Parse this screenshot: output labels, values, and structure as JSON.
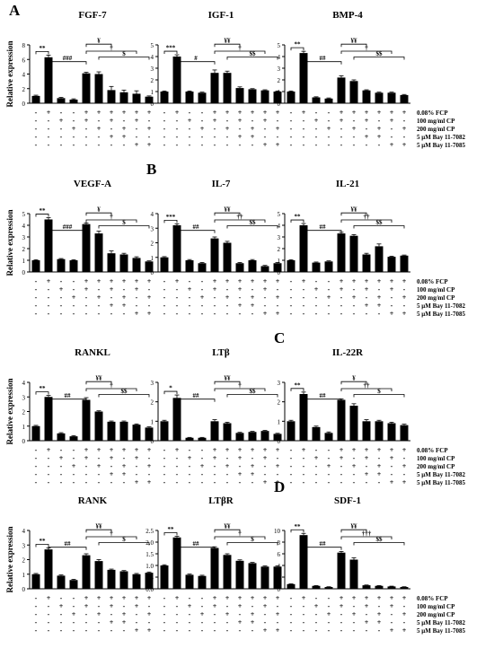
{
  "chart_data": {
    "type": "bar",
    "ylabel": "Relative expression",
    "treatment_rows": [
      "0.08% FCP",
      "100 mg/ml CP",
      "200 mg/ml CP",
      "5 μM Bay 11-7082",
      "5 μM Bay 11-7085"
    ],
    "treatment_matrix": [
      [
        "-",
        "+",
        "-",
        "-",
        "+",
        "+",
        "+",
        "+",
        "+",
        "+"
      ],
      [
        "-",
        "-",
        "+",
        "-",
        "+",
        "-",
        "+",
        "-",
        "+",
        "-"
      ],
      [
        "-",
        "-",
        "-",
        "+",
        "-",
        "+",
        "-",
        "+",
        "-",
        "+"
      ],
      [
        "-",
        "-",
        "-",
        "-",
        "-",
        "-",
        "+",
        "+",
        "-",
        "-"
      ],
      [
        "-",
        "-",
        "-",
        "-",
        "-",
        "-",
        "-",
        "-",
        "+",
        "+"
      ]
    ],
    "panel_letters": [
      "A",
      "B",
      "C",
      "D"
    ],
    "panels": [
      {
        "title": "FGF-7",
        "letter": "A",
        "ylim": [
          0,
          8
        ],
        "ticks": [
          0,
          2,
          4,
          6,
          8
        ],
        "values": [
          1.0,
          6.3,
          0.7,
          0.5,
          4.1,
          4.0,
          1.8,
          1.5,
          1.3,
          0.9
        ],
        "errors": [
          0.1,
          0.3,
          0.1,
          0.1,
          0.15,
          0.3,
          0.5,
          0.3,
          0.4,
          0.1
        ],
        "sig": [
          "**",
          "###",
          "¥",
          "†",
          "$"
        ]
      },
      {
        "title": "IGF-1",
        "letter": "",
        "ylim": [
          0,
          5
        ],
        "ticks": [
          0,
          1,
          2,
          3,
          4,
          5
        ],
        "values": [
          1.0,
          4.0,
          1.0,
          0.9,
          2.6,
          2.6,
          1.3,
          1.2,
          1.1,
          1.0
        ],
        "errors": [
          0.05,
          0.15,
          0.05,
          0.05,
          0.25,
          0.15,
          0.1,
          0.05,
          0.05,
          0.05
        ],
        "sig": [
          "***",
          "#",
          "¥¥",
          "†",
          "$$"
        ]
      },
      {
        "title": "BMP-4",
        "letter": "",
        "ylim": [
          0,
          5
        ],
        "ticks": [
          0,
          1,
          2,
          3,
          4,
          5
        ],
        "values": [
          1.0,
          4.3,
          0.5,
          0.4,
          2.2,
          1.9,
          1.1,
          0.9,
          0.9,
          0.7
        ],
        "errors": [
          0.05,
          0.15,
          0.05,
          0.05,
          0.15,
          0.1,
          0.05,
          0.05,
          0.05,
          0.05
        ],
        "sig": [
          "**",
          "##",
          "¥¥",
          "†",
          "$$"
        ]
      },
      {
        "title": "VEGF-A",
        "letter": "",
        "ylim": [
          0,
          5
        ],
        "ticks": [
          0,
          1,
          2,
          3,
          4,
          5
        ],
        "values": [
          1.0,
          4.5,
          1.1,
          1.0,
          4.1,
          3.3,
          1.6,
          1.5,
          1.2,
          0.9
        ],
        "errors": [
          0.05,
          0.15,
          0.05,
          0.05,
          0.1,
          0.2,
          0.2,
          0.1,
          0.1,
          0.05
        ],
        "sig": [
          "**",
          "###",
          "¥",
          "†",
          "$"
        ]
      },
      {
        "title": "IL-7",
        "letter": "B",
        "ylim": [
          0,
          4
        ],
        "ticks": [
          0,
          1,
          2,
          3,
          4
        ],
        "values": [
          1.0,
          3.2,
          0.8,
          0.6,
          2.3,
          2.0,
          0.6,
          0.8,
          0.4,
          0.6
        ],
        "errors": [
          0.05,
          0.1,
          0.05,
          0.05,
          0.1,
          0.1,
          0.05,
          0.05,
          0.05,
          0.05
        ],
        "sig": [
          "***",
          "##",
          "¥¥",
          "††",
          "$$"
        ]
      },
      {
        "title": "IL-21",
        "letter": "",
        "ylim": [
          0,
          5
        ],
        "ticks": [
          0,
          1,
          2,
          3,
          4,
          5
        ],
        "values": [
          1.0,
          4.0,
          0.8,
          0.9,
          3.3,
          3.1,
          1.5,
          2.2,
          1.3,
          1.4
        ],
        "errors": [
          0.05,
          0.15,
          0.05,
          0.05,
          0.1,
          0.1,
          0.1,
          0.2,
          0.05,
          0.05
        ],
        "sig": [
          "**",
          "##",
          "¥¥",
          "††",
          "$$"
        ]
      },
      {
        "title": "RANKL",
        "letter": "",
        "ylim": [
          0,
          4
        ],
        "ticks": [
          0,
          1,
          2,
          3,
          4
        ],
        "values": [
          1.0,
          3.0,
          0.5,
          0.3,
          2.8,
          2.0,
          1.3,
          1.3,
          1.1,
          0.9
        ],
        "errors": [
          0.05,
          0.1,
          0.05,
          0.05,
          0.15,
          0.05,
          0.05,
          0.05,
          0.05,
          0.05
        ],
        "sig": [
          "**",
          "##",
          "¥¥",
          "†",
          "$$"
        ]
      },
      {
        "title": "LTβ",
        "letter": "",
        "ylim": [
          0,
          3
        ],
        "ticks": [
          0,
          1,
          2,
          3
        ],
        "values": [
          1.0,
          2.2,
          0.15,
          0.15,
          1.0,
          0.9,
          0.4,
          0.45,
          0.5,
          0.35
        ],
        "errors": [
          0.05,
          0.15,
          0.02,
          0.02,
          0.08,
          0.05,
          0.03,
          0.03,
          0.03,
          0.03
        ],
        "sig": [
          "*",
          "##",
          "¥¥",
          "†",
          "$$"
        ]
      },
      {
        "title": "IL-22R",
        "letter": "C",
        "ylim": [
          0,
          3
        ],
        "ticks": [
          0,
          1,
          2,
          3
        ],
        "values": [
          1.0,
          2.4,
          0.7,
          0.4,
          2.1,
          1.8,
          1.0,
          1.0,
          0.9,
          0.8
        ],
        "errors": [
          0.05,
          0.1,
          0.05,
          0.05,
          0.05,
          0.1,
          0.08,
          0.05,
          0.05,
          0.05
        ],
        "sig": [
          "**",
          "##",
          "¥",
          "††",
          "$"
        ]
      },
      {
        "title": "RANK",
        "letter": "",
        "ylim": [
          0,
          4
        ],
        "ticks": [
          0,
          1,
          2,
          3,
          4
        ],
        "values": [
          1.0,
          2.7,
          0.9,
          0.6,
          2.3,
          1.9,
          1.3,
          1.2,
          1.0,
          1.1
        ],
        "errors": [
          0.05,
          0.1,
          0.05,
          0.05,
          0.1,
          0.1,
          0.05,
          0.05,
          0.05,
          0.05
        ],
        "sig": [
          "**",
          "##",
          "¥¥",
          "†",
          "$"
        ]
      },
      {
        "title": "LTβR",
        "letter": "",
        "ylim": [
          0,
          2.5
        ],
        "ticks": [
          0.0,
          0.5,
          1.0,
          1.5,
          2.0,
          2.5
        ],
        "values": [
          1.0,
          2.2,
          0.6,
          0.55,
          1.75,
          1.45,
          1.2,
          1.1,
          0.95,
          0.95
        ],
        "errors": [
          0.03,
          0.05,
          0.03,
          0.03,
          0.05,
          0.05,
          0.04,
          0.03,
          0.03,
          0.03
        ],
        "sig": [
          "**",
          "##",
          "¥¥",
          "†",
          "$"
        ]
      },
      {
        "title": "SDF-1",
        "letter": "D",
        "ylim": [
          0,
          10
        ],
        "ticks": [
          0,
          2,
          4,
          6,
          8,
          10
        ],
        "values": [
          0.8,
          9.2,
          0.5,
          0.3,
          6.2,
          5.0,
          0.6,
          0.5,
          0.4,
          0.3
        ],
        "errors": [
          0.05,
          0.3,
          0.05,
          0.05,
          0.2,
          0.3,
          0.05,
          0.05,
          0.05,
          0.05
        ],
        "sig": [
          "**",
          "##",
          "¥¥",
          "†††",
          "$$"
        ]
      }
    ]
  }
}
